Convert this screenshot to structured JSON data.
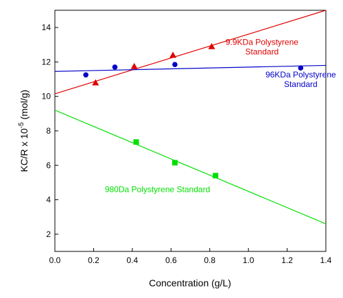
{
  "chart_data": {
    "type": "scatter",
    "title": "",
    "xlabel": "Concentration (g/L)",
    "ylabel": {
      "prefix": "KC/R x 10",
      "exponent": "-5",
      "suffix": " (mol/g)"
    },
    "xlim": [
      0.0,
      1.4
    ],
    "ylim": [
      1,
      15
    ],
    "xticks": [
      "0.0",
      "0.2",
      "0.4",
      "0.6",
      "0.8",
      "1.0",
      "1.2",
      "1.4"
    ],
    "yticks": [
      "2",
      "4",
      "6",
      "8",
      "10",
      "12",
      "14"
    ],
    "grid": false,
    "series": [
      {
        "label_lines": [
          "9.9KDa Polystyrene",
          "Standard"
        ],
        "color": "#e00000",
        "marker": "triangle",
        "points": [
          [
            0.21,
            10.8
          ],
          [
            0.41,
            11.75
          ],
          [
            0.61,
            12.4
          ],
          [
            0.81,
            12.9
          ]
        ],
        "fit": [
          [
            0.0,
            10.15
          ],
          [
            1.4,
            15.0
          ]
        ],
        "label_pos": [
          1.07,
          13.0
        ]
      },
      {
        "label_lines": [
          "96KDa Polystyrene",
          "Standard"
        ],
        "color": "#0000c8",
        "marker": "circle",
        "points": [
          [
            0.16,
            11.25
          ],
          [
            0.31,
            11.7
          ],
          [
            0.62,
            11.85
          ],
          [
            1.27,
            11.65
          ]
        ],
        "fit": [
          [
            0.0,
            11.45
          ],
          [
            1.4,
            11.8
          ]
        ],
        "label_pos": [
          1.27,
          11.1
        ]
      },
      {
        "label_lines": [
          "980Da Polystyrene Standard"
        ],
        "color": "#00e000",
        "marker": "square",
        "points": [
          [
            0.42,
            7.35
          ],
          [
            0.62,
            6.15
          ],
          [
            0.83,
            5.4
          ]
        ],
        "fit": [
          [
            0.0,
            9.2
          ],
          [
            1.4,
            2.6
          ]
        ],
        "label_pos": [
          0.53,
          4.45
        ]
      }
    ]
  }
}
